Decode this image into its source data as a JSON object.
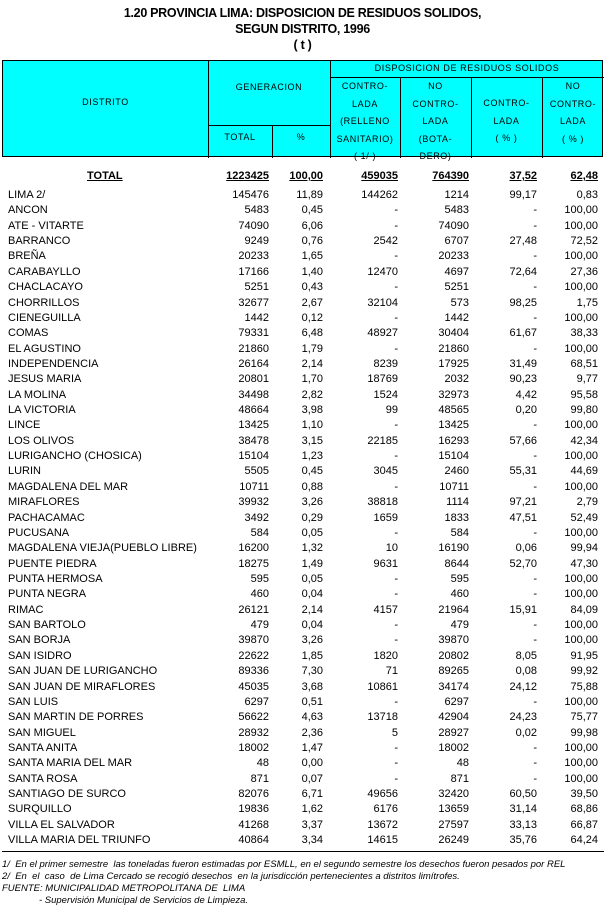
{
  "title": {
    "line1": "1.20  PROVINCIA  LIMA: DISPOSICION DE RESIDUOS SOLIDOS,",
    "line2": "SEGUN DISTRITO, 1996",
    "unit": "( t )"
  },
  "header": {
    "distrito": "DISTRITO",
    "generacion": "GENERACION",
    "total": "TOTAL",
    "pct": "%",
    "disposicion": "DISPOSICION DE RESIDUOS SOLIDOS",
    "controlada": [
      "CONTRO-",
      "LADA",
      "(RELLENO",
      "SANITARIO)",
      "( 1/ )"
    ],
    "no_controlada": [
      "NO",
      "CONTRO-",
      "LADA",
      "(BOTA-",
      "DERO)"
    ],
    "controlada_pct": [
      "CONTRO-",
      "LADA",
      "( % )"
    ],
    "no_controlada_pct": [
      "NO",
      "CONTRO-",
      "LADA",
      "( % )"
    ]
  },
  "total_row": [
    "TOTAL",
    "1223425",
    "100,00",
    "459035",
    "764390",
    "37,52",
    "62,48"
  ],
  "rows": [
    [
      "LIMA  2/",
      "145476",
      "11,89",
      "144262",
      "1214",
      "99,17",
      "0,83"
    ],
    [
      "ANCON",
      "5483",
      "0,45",
      "-",
      "5483",
      "-",
      "100,00"
    ],
    [
      "ATE - VITARTE",
      "74090",
      "6,06",
      "-",
      "74090",
      "-",
      "100,00"
    ],
    [
      "BARRANCO",
      "9249",
      "0,76",
      "2542",
      "6707",
      "27,48",
      "72,52"
    ],
    [
      "BREÑA",
      "20233",
      "1,65",
      "-",
      "20233",
      "-",
      "100,00"
    ],
    [
      "CARABAYLLO",
      "17166",
      "1,40",
      "12470",
      "4697",
      "72,64",
      "27,36"
    ],
    [
      "CHACLACAYO",
      "5251",
      "0,43",
      "-",
      "5251",
      "-",
      "100,00"
    ],
    [
      "CHORRILLOS",
      "32677",
      "2,67",
      "32104",
      "573",
      "98,25",
      "1,75"
    ],
    [
      "CIENEGUILLA",
      "1442",
      "0,12",
      "-",
      "1442",
      "-",
      "100,00"
    ],
    [
      "COMAS",
      "79331",
      "6,48",
      "48927",
      "30404",
      "61,67",
      "38,33"
    ],
    [
      "EL AGUSTINO",
      "21860",
      "1,79",
      "-",
      "21860",
      "-",
      "100,00"
    ],
    [
      "INDEPENDENCIA",
      "26164",
      "2,14",
      "8239",
      "17925",
      "31,49",
      "68,51"
    ],
    [
      "JESUS MARIA",
      "20801",
      "1,70",
      "18769",
      "2032",
      "90,23",
      "9,77"
    ],
    [
      "LA MOLINA",
      "34498",
      "2,82",
      "1524",
      "32973",
      "4,42",
      "95,58"
    ],
    [
      "LA VICTORIA",
      "48664",
      "3,98",
      "99",
      "48565",
      "0,20",
      "99,80"
    ],
    [
      "LINCE",
      "13425",
      "1,10",
      "-",
      "13425",
      "-",
      "100,00"
    ],
    [
      "LOS OLIVOS",
      "38478",
      "3,15",
      "22185",
      "16293",
      "57,66",
      "42,34"
    ],
    [
      "LURIGANCHO (CHOSICA)",
      "15104",
      "1,23",
      "-",
      "15104",
      "-",
      "100,00"
    ],
    [
      "LURIN",
      "5505",
      "0,45",
      "3045",
      "2460",
      "55,31",
      "44,69"
    ],
    [
      "MAGDALENA DEL MAR",
      "10711",
      "0,88",
      "-",
      "10711",
      "-",
      "100,00"
    ],
    [
      "MIRAFLORES",
      "39932",
      "3,26",
      "38818",
      "1114",
      "97,21",
      "2,79"
    ],
    [
      "PACHACAMAC",
      "3492",
      "0,29",
      "1659",
      "1833",
      "47,51",
      "52,49"
    ],
    [
      "PUCUSANA",
      "584",
      "0,05",
      "-",
      "584",
      "-",
      "100,00"
    ],
    [
      "MAGDALENA VIEJA(PUEBLO LIBRE)",
      "16200",
      "1,32",
      "10",
      "16190",
      "0,06",
      "99,94"
    ],
    [
      "PUENTE PIEDRA",
      "18275",
      "1,49",
      "9631",
      "8644",
      "52,70",
      "47,30"
    ],
    [
      "PUNTA HERMOSA",
      "595",
      "0,05",
      "-",
      "595",
      "-",
      "100,00"
    ],
    [
      "PUNTA NEGRA",
      "460",
      "0,04",
      "-",
      "460",
      "-",
      "100,00"
    ],
    [
      "RIMAC",
      "26121",
      "2,14",
      "4157",
      "21964",
      "15,91",
      "84,09"
    ],
    [
      "SAN BARTOLO",
      "479",
      "0,04",
      "-",
      "479",
      "-",
      "100,00"
    ],
    [
      "SAN BORJA",
      "39870",
      "3,26",
      "-",
      "39870",
      "-",
      "100,00"
    ],
    [
      "SAN ISIDRO",
      "22622",
      "1,85",
      "1820",
      "20802",
      "8,05",
      "91,95"
    ],
    [
      "SAN JUAN DE LURIGANCHO",
      "89336",
      "7,30",
      "71",
      "89265",
      "0,08",
      "99,92"
    ],
    [
      "SAN JUAN DE MIRAFLORES",
      "45035",
      "3,68",
      "10861",
      "34174",
      "24,12",
      "75,88"
    ],
    [
      "SAN LUIS",
      "6297",
      "0,51",
      "-",
      "6297",
      "-",
      "100,00"
    ],
    [
      "SAN MARTIN DE PORRES",
      "56622",
      "4,63",
      "13718",
      "42904",
      "24,23",
      "75,77"
    ],
    [
      "SAN MIGUEL",
      "28932",
      "2,36",
      "5",
      "28927",
      "0,02",
      "99,98"
    ],
    [
      "SANTA ANITA",
      "18002",
      "1,47",
      "-",
      "18002",
      "-",
      "100,00"
    ],
    [
      "SANTA MARIA DEL MAR",
      "48",
      "0,00",
      "-",
      "48",
      "-",
      "100,00"
    ],
    [
      "SANTA ROSA",
      "871",
      "0,07",
      "-",
      "871",
      "-",
      "100,00"
    ],
    [
      "SANTIAGO DE SURCO",
      "82076",
      "6,71",
      "49656",
      "32420",
      "60,50",
      "39,50"
    ],
    [
      "SURQUILLO",
      "19836",
      "1,62",
      "6176",
      "13659",
      "31,14",
      "68,86"
    ],
    [
      "VILLA EL SALVADOR",
      "41268",
      "3,37",
      "13672",
      "27597",
      "33,13",
      "66,87"
    ],
    [
      "VILLA MARIA DEL TRIUNFO",
      "40864",
      "3,34",
      "14615",
      "26249",
      "35,76",
      "64,24"
    ]
  ],
  "footnotes": [
    "1/  En el primer semestre  las toneladas fueron estimadas por ESMLL, en el segundo semestre los desechos fueron pesados por REL",
    "2/  En  el  caso  de Lima Cercado se recogió desechos  en la jurisdicción pertenecientes a distritos limítrofes.",
    "FUENTE: MUNICIPALIDAD METROPOLITANA DE  LIMA",
    "              - Supervisión Municipal de Servicios de Limpieza."
  ],
  "colors": {
    "header_bg": "#00ffff"
  }
}
